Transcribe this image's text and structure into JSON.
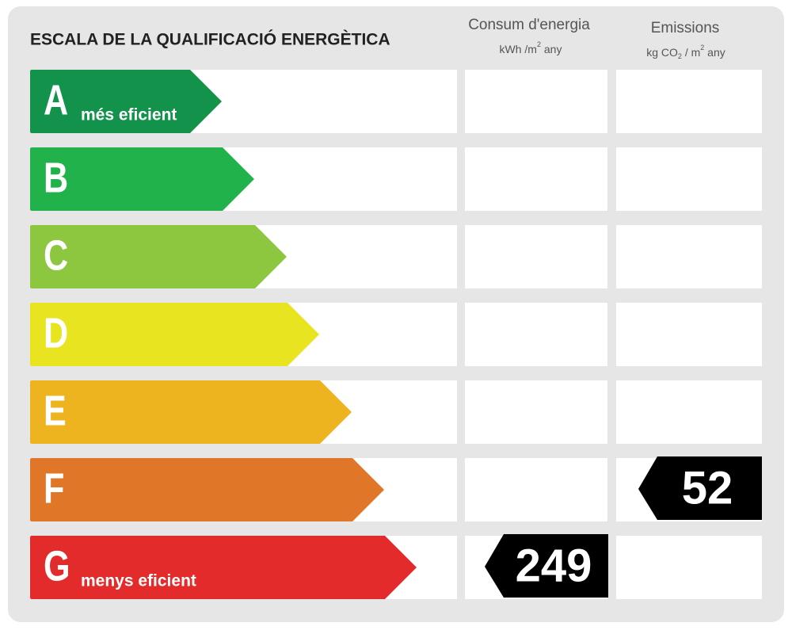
{
  "header": {
    "title": "ESCALA DE LA QUALIFICACIÓ ENERGÈTICA",
    "consumption": {
      "title": "Consum d'energia",
      "unit": [
        {
          "text": "kWh /m"
        },
        {
          "text": "2",
          "pos": "sup"
        },
        {
          "text": " any"
        }
      ]
    },
    "emissions": {
      "title": "Emissions",
      "unit": [
        {
          "text": "kg CO"
        },
        {
          "text": "2",
          "pos": "sub"
        },
        {
          "text": " / m"
        },
        {
          "text": "2",
          "pos": "sup"
        },
        {
          "text": " any"
        }
      ]
    }
  },
  "rows": [
    {
      "letter": "A",
      "note": "més eficient",
      "color": "#13924b"
    },
    {
      "letter": "B",
      "color": "#22b24c"
    },
    {
      "letter": "C",
      "color": "#8dc63f"
    },
    {
      "letter": "D",
      "color": "#e8e41f"
    },
    {
      "letter": "E",
      "color": "#eeb420"
    },
    {
      "letter": "F",
      "color": "#e07627",
      "emissions": 52
    },
    {
      "letter": "G",
      "note": "menys eficient",
      "color": "#e32b2b",
      "consumption": 249
    }
  ]
}
